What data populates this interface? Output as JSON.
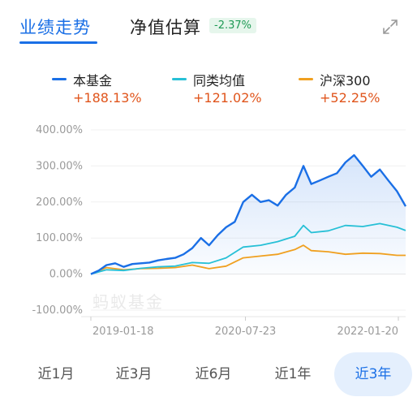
{
  "tabs": {
    "performance": "业绩走势",
    "estimate": "净值估算",
    "estimate_change": "-2.37%"
  },
  "legend": [
    {
      "name": "本基金",
      "value": "+188.13%",
      "color": "#1a6fe6"
    },
    {
      "name": "同类均值",
      "value": "+121.02%",
      "color": "#27c0d6"
    },
    {
      "name": "沪深300",
      "value": "+52.25%",
      "color": "#f0a020"
    }
  ],
  "watermark": "蚂蚁基金",
  "periods": [
    "近1月",
    "近3月",
    "近6月",
    "近1年",
    "近3年"
  ],
  "active_period": "近3年",
  "chart_data": {
    "type": "line",
    "x_ticks": [
      "2019-01-18",
      "2020-07-23",
      "2022-01-20"
    ],
    "y_ticks": [
      "400.00%",
      "300.00%",
      "200.00%",
      "100.00%",
      "0.00%",
      "-100.00%"
    ],
    "ylim": [
      -100,
      400
    ],
    "x_start": "2019-01-18",
    "x_end": "2022-02-15",
    "series": [
      {
        "name": "本基金",
        "color": "#1a6fe6",
        "points": [
          [
            "2019-01-18",
            0
          ],
          [
            "2019-02-15",
            10
          ],
          [
            "2019-03-15",
            25
          ],
          [
            "2019-04-15",
            30
          ],
          [
            "2019-05-15",
            20
          ],
          [
            "2019-06-15",
            28
          ],
          [
            "2019-07-15",
            30
          ],
          [
            "2019-08-15",
            32
          ],
          [
            "2019-09-15",
            38
          ],
          [
            "2019-10-15",
            42
          ],
          [
            "2019-11-15",
            45
          ],
          [
            "2019-12-15",
            55
          ],
          [
            "2020-01-15",
            72
          ],
          [
            "2020-02-15",
            100
          ],
          [
            "2020-03-15",
            80
          ],
          [
            "2020-04-15",
            108
          ],
          [
            "2020-05-15",
            130
          ],
          [
            "2020-06-15",
            145
          ],
          [
            "2020-07-15",
            200
          ],
          [
            "2020-08-15",
            220
          ],
          [
            "2020-09-15",
            200
          ],
          [
            "2020-10-15",
            205
          ],
          [
            "2020-11-15",
            190
          ],
          [
            "2020-12-15",
            220
          ],
          [
            "2021-01-15",
            240
          ],
          [
            "2021-02-15",
            300
          ],
          [
            "2021-03-15",
            250
          ],
          [
            "2021-04-15",
            260
          ],
          [
            "2021-05-15",
            270
          ],
          [
            "2021-06-15",
            280
          ],
          [
            "2021-07-15",
            310
          ],
          [
            "2021-08-15",
            330
          ],
          [
            "2021-09-15",
            300
          ],
          [
            "2021-10-15",
            270
          ],
          [
            "2021-11-15",
            290
          ],
          [
            "2021-12-15",
            260
          ],
          [
            "2022-01-15",
            230
          ],
          [
            "2022-02-15",
            188
          ]
        ]
      },
      {
        "name": "同类均值",
        "color": "#27c0d6",
        "points": [
          [
            "2019-01-18",
            0
          ],
          [
            "2019-03-15",
            12
          ],
          [
            "2019-05-15",
            10
          ],
          [
            "2019-07-15",
            16
          ],
          [
            "2019-09-15",
            20
          ],
          [
            "2019-11-15",
            22
          ],
          [
            "2020-01-15",
            32
          ],
          [
            "2020-03-15",
            30
          ],
          [
            "2020-05-15",
            45
          ],
          [
            "2020-07-15",
            75
          ],
          [
            "2020-09-15",
            80
          ],
          [
            "2020-11-15",
            90
          ],
          [
            "2021-01-15",
            105
          ],
          [
            "2021-02-15",
            135
          ],
          [
            "2021-03-15",
            115
          ],
          [
            "2021-05-15",
            120
          ],
          [
            "2021-07-15",
            135
          ],
          [
            "2021-09-15",
            132
          ],
          [
            "2021-11-15",
            140
          ],
          [
            "2022-01-15",
            130
          ],
          [
            "2022-02-15",
            121
          ]
        ]
      },
      {
        "name": "沪深300",
        "color": "#f0a020",
        "points": [
          [
            "2019-01-18",
            0
          ],
          [
            "2019-03-15",
            18
          ],
          [
            "2019-05-15",
            12
          ],
          [
            "2019-07-15",
            15
          ],
          [
            "2019-09-15",
            16
          ],
          [
            "2019-11-15",
            18
          ],
          [
            "2020-01-15",
            25
          ],
          [
            "2020-03-15",
            15
          ],
          [
            "2020-05-15",
            22
          ],
          [
            "2020-07-15",
            45
          ],
          [
            "2020-09-15",
            50
          ],
          [
            "2020-11-15",
            55
          ],
          [
            "2021-01-15",
            68
          ],
          [
            "2021-02-15",
            80
          ],
          [
            "2021-03-15",
            65
          ],
          [
            "2021-05-15",
            62
          ],
          [
            "2021-07-15",
            55
          ],
          [
            "2021-09-15",
            58
          ],
          [
            "2021-11-15",
            57
          ],
          [
            "2022-01-15",
            52
          ],
          [
            "2022-02-15",
            52
          ]
        ]
      }
    ]
  }
}
